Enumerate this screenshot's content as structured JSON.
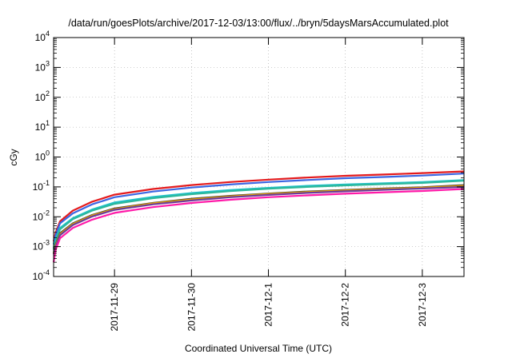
{
  "chart_data": {
    "type": "line",
    "title": "/data/run/goesPlots/archive/2017-12-03/13:00/flux/../bryn/5daysMarsAccumulated.plot",
    "xlabel": "Coordinated Universal Time (UTC)",
    "ylabel": "cGy",
    "yscale": "log",
    "ylim": [
      0.0001,
      10000
    ],
    "xlim": [
      "2017-11-28 05:00",
      "2017-12-03 13:00"
    ],
    "ytick_labels": [
      {
        "value": 0.0001,
        "base": "10",
        "exp": "-4"
      },
      {
        "value": 0.001,
        "base": "10",
        "exp": "-3"
      },
      {
        "value": 0.01,
        "base": "10",
        "exp": "-2"
      },
      {
        "value": 0.1,
        "base": "10",
        "exp": "-1"
      },
      {
        "value": 1,
        "base": "10",
        "exp": "0"
      },
      {
        "value": 10,
        "base": "10",
        "exp": "1"
      },
      {
        "value": 100,
        "base": "10",
        "exp": "2"
      },
      {
        "value": 1000,
        "base": "10",
        "exp": "3"
      },
      {
        "value": 10000,
        "base": "10",
        "exp": "4"
      }
    ],
    "xtick_labels": [
      "2017-11-29",
      "2017-11-30",
      "2017-12-1",
      "2017-12-2",
      "2017-12-3"
    ],
    "xtick_values": [
      "2017-11-29 00:00",
      "2017-11-30 00:00",
      "2017-12-01 00:00",
      "2017-12-02 00:00",
      "2017-12-03 00:00"
    ],
    "grid": true,
    "legend": "none",
    "x": [
      "2017-11-28 05:00",
      "2017-11-28 05:40",
      "2017-11-28 07:00",
      "2017-11-28 11:00",
      "2017-11-28 17:00",
      "2017-11-29 00:00",
      "2017-11-29 12:00",
      "2017-11-30 00:00",
      "2017-11-30 12:00",
      "2017-12-01 00:00",
      "2017-12-01 12:00",
      "2017-12-02 00:00",
      "2017-12-02 12:00",
      "2017-12-03 00:00",
      "2017-12-03 13:00"
    ],
    "series": [
      {
        "color": "#e41a1c",
        "values": [
          0.0015,
          0.003,
          0.007,
          0.016,
          0.032,
          0.055,
          0.085,
          0.115,
          0.145,
          0.175,
          0.205,
          0.235,
          0.26,
          0.29,
          0.33
        ]
      },
      {
        "color": "#3b66e3",
        "values": [
          0.0012,
          0.0025,
          0.006,
          0.013,
          0.026,
          0.045,
          0.07,
          0.095,
          0.12,
          0.145,
          0.17,
          0.195,
          0.215,
          0.24,
          0.28
        ]
      },
      {
        "color": "#1fc0c9",
        "values": [
          0.0009,
          0.0018,
          0.0042,
          0.009,
          0.0175,
          0.03,
          0.046,
          0.062,
          0.078,
          0.093,
          0.108,
          0.12,
          0.132,
          0.145,
          0.17
        ]
      },
      {
        "color": "#2cb89b",
        "values": [
          0.0008,
          0.0016,
          0.0038,
          0.0083,
          0.016,
          0.027,
          0.042,
          0.057,
          0.072,
          0.087,
          0.1,
          0.112,
          0.124,
          0.136,
          0.16
        ]
      },
      {
        "color": "#404040",
        "values": [
          0.0006,
          0.0012,
          0.0028,
          0.006,
          0.0115,
          0.019,
          0.029,
          0.04,
          0.05,
          0.06,
          0.07,
          0.079,
          0.088,
          0.097,
          0.115
        ]
      },
      {
        "color": "#e69f00",
        "values": [
          0.0006,
          0.0011,
          0.0026,
          0.0057,
          0.011,
          0.018,
          0.028,
          0.038,
          0.048,
          0.058,
          0.067,
          0.076,
          0.085,
          0.094,
          0.108
        ]
      },
      {
        "color": "#6a3d9a",
        "values": [
          0.00055,
          0.001,
          0.0024,
          0.0053,
          0.0102,
          0.017,
          0.026,
          0.035,
          0.045,
          0.054,
          0.063,
          0.071,
          0.08,
          0.088,
          0.1
        ]
      },
      {
        "color": "#ff1aa8",
        "values": [
          0.0003,
          0.0008,
          0.0019,
          0.0042,
          0.008,
          0.0135,
          0.021,
          0.029,
          0.037,
          0.045,
          0.052,
          0.059,
          0.066,
          0.073,
          0.085
        ]
      }
    ]
  }
}
